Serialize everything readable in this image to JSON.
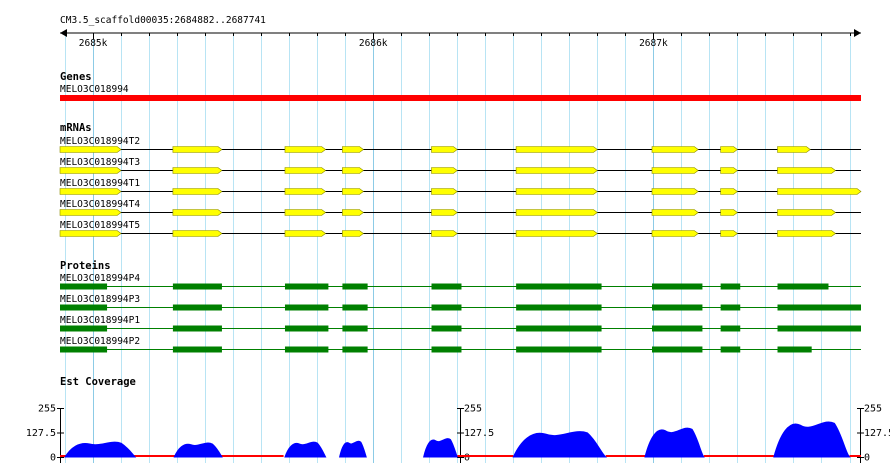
{
  "region": "CM3.5_scaffold00035:2684882..2687741",
  "ruler": {
    "start": 2684882,
    "end": 2687741,
    "ticks": [
      "2685k",
      "2686k",
      "2687k"
    ],
    "tick_values": [
      2685000,
      2686000,
      2687000
    ]
  },
  "colors": {
    "gene": "#ff0000",
    "mrna": "#ffff00",
    "protein": "#008000",
    "coverage": "#0000ff",
    "coverage_low": "#ff0000",
    "grid": "#b8e4f4"
  },
  "tracks": {
    "genes": {
      "title": "Genes",
      "items": [
        {
          "name": "MELO3C018994",
          "start": 2684882,
          "end": 2687741
        }
      ]
    },
    "mrnas": {
      "title": "mRNAs",
      "items": [
        {
          "name": "MELO3C018994T2",
          "exons": [
            [
              2684882,
              2685100
            ],
            [
              2685285,
              2685460
            ],
            [
              2685685,
              2685830
            ],
            [
              2685890,
              2685965
            ],
            [
              2686208,
              2686300
            ],
            [
              2686510,
              2686800
            ],
            [
              2686995,
              2687160
            ],
            [
              2687240,
              2687300
            ],
            [
              2687443,
              2687560
            ]
          ]
        },
        {
          "name": "MELO3C018994T3",
          "exons": [
            [
              2684882,
              2685100
            ],
            [
              2685285,
              2685460
            ],
            [
              2685685,
              2685830
            ],
            [
              2685890,
              2685965
            ],
            [
              2686208,
              2686300
            ],
            [
              2686510,
              2686800
            ],
            [
              2686995,
              2687160
            ],
            [
              2687240,
              2687300
            ],
            [
              2687443,
              2687650
            ]
          ]
        },
        {
          "name": "MELO3C018994T1",
          "exons": [
            [
              2684882,
              2685100
            ],
            [
              2685285,
              2685460
            ],
            [
              2685685,
              2685830
            ],
            [
              2685890,
              2685965
            ],
            [
              2686208,
              2686300
            ],
            [
              2686510,
              2686800
            ],
            [
              2686995,
              2687160
            ],
            [
              2687240,
              2687300
            ],
            [
              2687443,
              2687741
            ]
          ]
        },
        {
          "name": "MELO3C018994T4",
          "exons": [
            [
              2684882,
              2685100
            ],
            [
              2685285,
              2685460
            ],
            [
              2685685,
              2685830
            ],
            [
              2685890,
              2685965
            ],
            [
              2686208,
              2686300
            ],
            [
              2686510,
              2686800
            ],
            [
              2686995,
              2687160
            ],
            [
              2687240,
              2687300
            ],
            [
              2687443,
              2687650
            ]
          ]
        },
        {
          "name": "MELO3C018994T5",
          "exons": [
            [
              2684882,
              2685100
            ],
            [
              2685285,
              2685460
            ],
            [
              2685685,
              2685830
            ],
            [
              2685890,
              2685965
            ],
            [
              2686208,
              2686300
            ],
            [
              2686510,
              2686800
            ],
            [
              2686995,
              2687160
            ],
            [
              2687240,
              2687300
            ],
            [
              2687443,
              2687650
            ]
          ]
        }
      ]
    },
    "proteins": {
      "title": "Proteins",
      "items": [
        {
          "name": "MELO3C018994P4",
          "exons": [
            [
              2684882,
              2685050
            ],
            [
              2685285,
              2685460
            ],
            [
              2685685,
              2685840
            ],
            [
              2685890,
              2685980
            ],
            [
              2686208,
              2686315
            ],
            [
              2686510,
              2686815
            ],
            [
              2686995,
              2687175
            ],
            [
              2687240,
              2687310
            ],
            [
              2687443,
              2687625
            ]
          ]
        },
        {
          "name": "MELO3C018994P3",
          "exons": [
            [
              2684882,
              2685050
            ],
            [
              2685285,
              2685460
            ],
            [
              2685685,
              2685840
            ],
            [
              2685890,
              2685980
            ],
            [
              2686208,
              2686315
            ],
            [
              2686510,
              2686815
            ],
            [
              2686995,
              2687175
            ],
            [
              2687240,
              2687310
            ],
            [
              2687443,
              2687741
            ]
          ]
        },
        {
          "name": "MELO3C018994P1",
          "exons": [
            [
              2684882,
              2685050
            ],
            [
              2685285,
              2685460
            ],
            [
              2685685,
              2685840
            ],
            [
              2685890,
              2685980
            ],
            [
              2686208,
              2686315
            ],
            [
              2686510,
              2686815
            ],
            [
              2686995,
              2687175
            ],
            [
              2687240,
              2687310
            ],
            [
              2687443,
              2687741
            ]
          ]
        },
        {
          "name": "MELO3C018994P2",
          "exons": [
            [
              2684882,
              2685050
            ],
            [
              2685285,
              2685460
            ],
            [
              2685685,
              2685840
            ],
            [
              2685890,
              2685980
            ],
            [
              2686208,
              2686315
            ],
            [
              2686510,
              2686815
            ],
            [
              2686995,
              2687175
            ],
            [
              2687240,
              2687310
            ],
            [
              2687443,
              2687565
            ]
          ]
        }
      ]
    },
    "coverage": {
      "title": "Est Coverage",
      "y_ticks": [
        "255",
        "127.5",
        "0"
      ],
      "y_max": 255,
      "peaks": [
        {
          "start": 2684900,
          "end": 2685150,
          "height": 80
        },
        {
          "start": 2685290,
          "end": 2685460,
          "height": 75
        },
        {
          "start": 2685685,
          "end": 2685830,
          "height": 80
        },
        {
          "start": 2685880,
          "end": 2685975,
          "height": 85
        },
        {
          "start": 2686180,
          "end": 2686300,
          "height": 100
        },
        {
          "start": 2686500,
          "end": 2686830,
          "height": 140
        },
        {
          "start": 2686970,
          "end": 2687180,
          "height": 160
        },
        {
          "start": 2687430,
          "end": 2687700,
          "height": 195
        }
      ],
      "low": [
        {
          "start": 2684882,
          "end": 2685680
        },
        {
          "start": 2686300,
          "end": 2686500
        },
        {
          "start": 2686830,
          "end": 2686970
        },
        {
          "start": 2687180,
          "end": 2687430
        },
        {
          "start": 2687700,
          "end": 2687741
        }
      ]
    }
  }
}
